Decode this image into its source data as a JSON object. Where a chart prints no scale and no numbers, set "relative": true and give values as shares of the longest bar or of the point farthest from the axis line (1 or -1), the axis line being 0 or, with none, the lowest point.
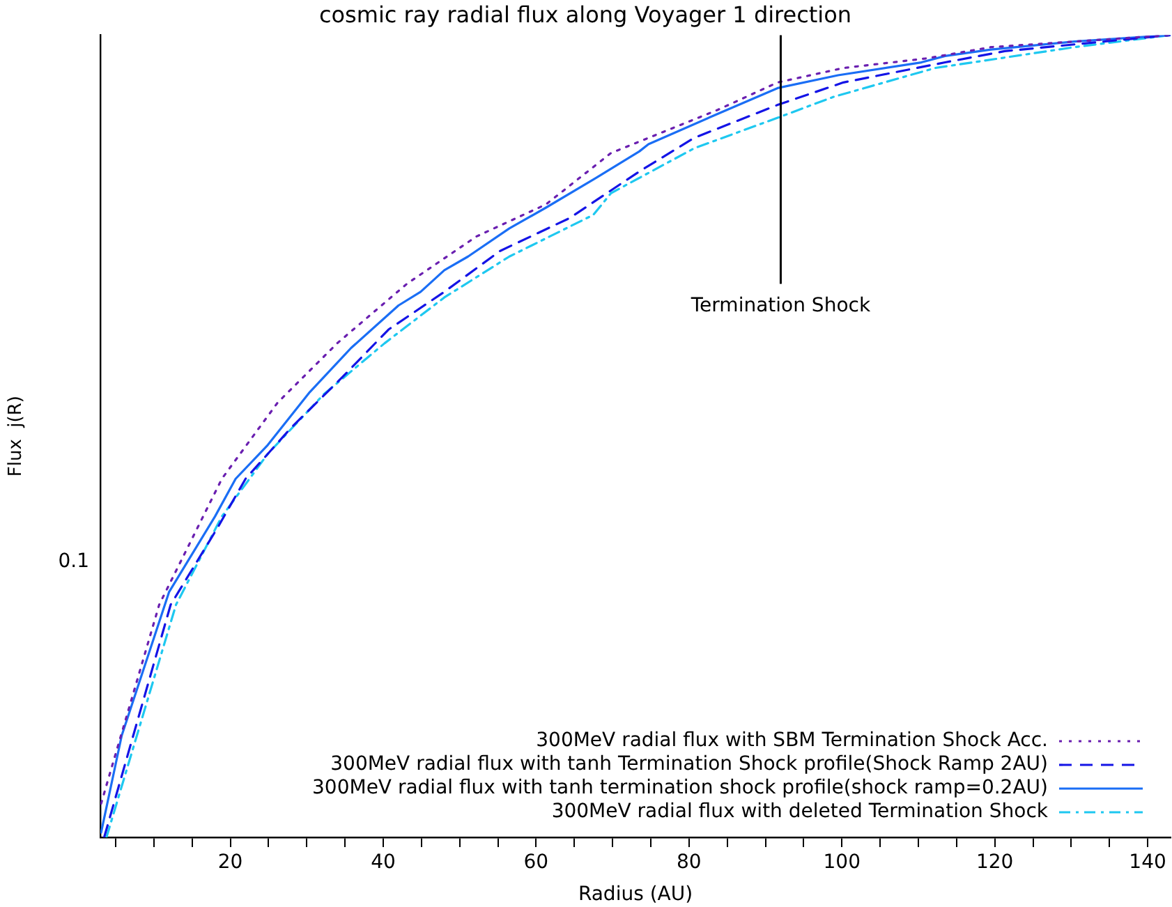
{
  "chart_data": {
    "type": "line",
    "title": "cosmic ray radial flux along Voyager 1 direction",
    "xlabel": "Radius (AU)",
    "ylabel": "Flux  j(R)",
    "relative": true,
    "xlim": [
      3,
      143
    ],
    "xticks": [
      {
        "value": 5,
        "label": null
      },
      {
        "value": 10,
        "label": null
      },
      {
        "value": 15,
        "label": null
      },
      20,
      {
        "value": 25,
        "label": null
      },
      {
        "value": 30,
        "label": null
      },
      {
        "value": 35,
        "label": null
      },
      40,
      {
        "value": 45,
        "label": null
      },
      {
        "value": 50,
        "label": null
      },
      {
        "value": 55,
        "label": null
      },
      60,
      {
        "value": 65,
        "label": null
      },
      {
        "value": 70,
        "label": null
      },
      {
        "value": 75,
        "label": null
      },
      80,
      {
        "value": 85,
        "label": null
      },
      {
        "value": 90,
        "label": null
      },
      {
        "value": 95,
        "label": null
      },
      100,
      {
        "value": 105,
        "label": null
      },
      {
        "value": 110,
        "label": null
      },
      {
        "value": 115,
        "label": null
      },
      120,
      {
        "value": 125,
        "label": null
      },
      {
        "value": 130,
        "label": null
      },
      {
        "value": 135,
        "label": null
      },
      140
    ],
    "annotations": [
      "0.1"
    ],
    "marker": "none",
    "legend": "bottom right",
    "ref_lines": [
      {
        "axis": "x",
        "value": 92,
        "label": "Termination Shock",
        "color": "#000000"
      }
    ],
    "series": [
      {
        "name": "300MeV radial flux with SBM Termination Shock Acc.",
        "color": "#6a1fb0",
        "line_style": "dotted",
        "x": [
          3.1,
          10.7,
          18.9,
          26.2,
          34.0,
          43.1,
          52.2,
          61.3,
          69.8,
          83.8,
          91.6,
          100.2,
          111.1,
          119.5,
          143
        ],
        "values": [
          0.042,
          0.29,
          0.447,
          0.542,
          0.616,
          0.69,
          0.749,
          0.789,
          0.853,
          0.907,
          0.941,
          0.959,
          0.971,
          0.985,
          1
        ]
      },
      {
        "name": "300MeV radial flux with tanh Termination Shock profile(Shock Ramp 2AU)",
        "color": "#1414e6",
        "line_style": "dashed",
        "x": [
          3.5,
          12.2,
          18.4,
          22.0,
          28.0,
          34.7,
          40.7,
          48.0,
          55.3,
          64.4,
          73.5,
          80.7,
          91.6,
          100.2,
          113.5,
          121.3,
          143
        ],
        "values": [
          0,
          0.29,
          0.387,
          0.447,
          0.511,
          0.574,
          0.633,
          0.68,
          0.731,
          0.772,
          0.83,
          0.872,
          0.913,
          0.941,
          0.966,
          0.98,
          1
        ]
      },
      {
        "name": "300MeV radial flux with tanh termination shock profile(shock ramp=0.2AU)",
        "color": "#1a6ef5",
        "line_style": "solid",
        "x": [
          3.1,
          5.8,
          12.0,
          18.0,
          20.7,
          24.9,
          30.4,
          35.8,
          42.0,
          44.9,
          48.0,
          51.1,
          56.5,
          61.3,
          67.5,
          73.5,
          74.7,
          83.8,
          91.6,
          99.5,
          110.4,
          113.5,
          119.5,
          130.4,
          143
        ],
        "values": [
          0.006,
          0.127,
          0.306,
          0.4,
          0.447,
          0.489,
          0.555,
          0.61,
          0.663,
          0.68,
          0.707,
          0.724,
          0.759,
          0.785,
          0.82,
          0.855,
          0.864,
          0.902,
          0.934,
          0.95,
          0.966,
          0.974,
          0.982,
          0.992,
          1
        ]
      },
      {
        "name": "300MeV radial flux with deleted Termination Shock",
        "color": "#1ec8f0",
        "line_style": "dashdot",
        "x": [
          3.8,
          12.9,
          18.9,
          24.9,
          32.2,
          40.2,
          48.0,
          56.5,
          67.5,
          69.8,
          80.7,
          91.6,
          98.9,
          112.2,
          130.4,
          143
        ],
        "values": [
          0,
          0.29,
          0.4,
          0.478,
          0.552,
          0.616,
          0.673,
          0.724,
          0.776,
          0.803,
          0.859,
          0.897,
          0.923,
          0.959,
          0.985,
          1
        ]
      }
    ]
  }
}
